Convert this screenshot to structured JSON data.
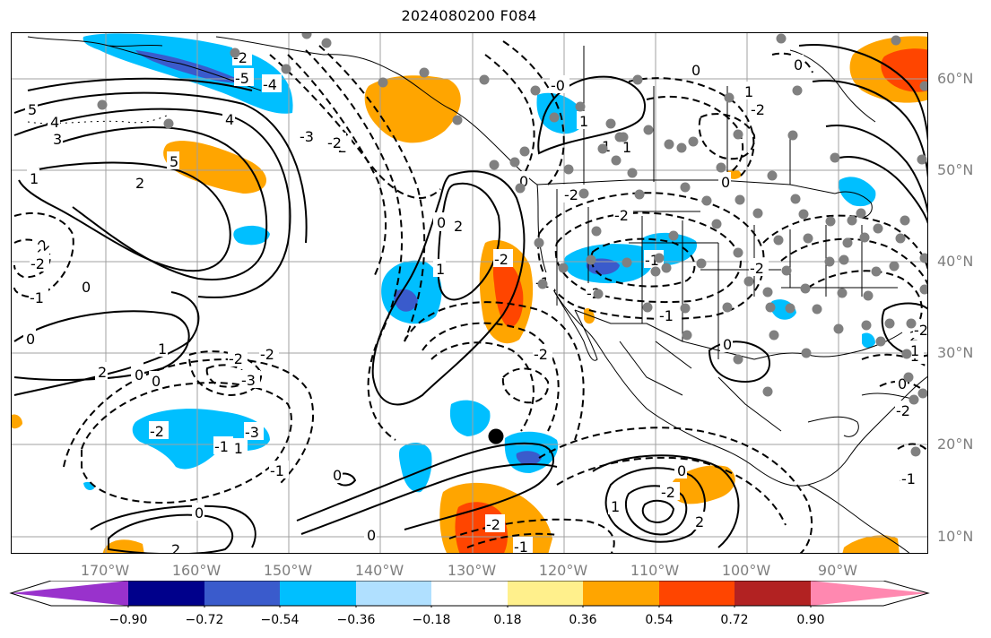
{
  "title": "2024080200 F084",
  "map": {
    "latitude_labels": [
      "60°N",
      "50°N",
      "40°N",
      "30°N",
      "20°N",
      "10°N"
    ],
    "longitude_labels": [
      "170°W",
      "160°W",
      "150°W",
      "140°W",
      "130°W",
      "120°W",
      "110°W",
      "100°W",
      "90°W"
    ],
    "contour_labels": [
      "5",
      "4",
      "3",
      "1",
      "2",
      "5",
      "-2",
      "-1",
      "0",
      "0",
      "2",
      "0",
      "1",
      "-2",
      "-3",
      "-2",
      "-2",
      "0",
      "2",
      "1",
      "-2",
      "-1",
      "0",
      "-2",
      "-2",
      "-1",
      "0",
      "-1",
      "0",
      "2",
      "-1",
      "-2",
      "-3",
      "-1",
      "0",
      "-0",
      "1",
      "-2",
      "-2",
      "-1",
      "-1",
      "-2",
      "0",
      "1",
      "-2",
      "1",
      "0",
      "-2",
      "0",
      "2",
      "-1",
      "0",
      "-1",
      "-2",
      "-2",
      "-2",
      "2",
      "1",
      "0",
      "0",
      "0",
      "0",
      "-1",
      "1",
      "-5",
      "-4",
      "-3",
      "-2",
      "4",
      "0",
      "1",
      "-2",
      "-2"
    ],
    "marker_color": "#000000",
    "station_color": "#808080",
    "line_color": "#000000",
    "grid_color": "#a0a0a0",
    "fill_colors": {
      "light_blue": "#00bfff",
      "blue": "#3a5bcc",
      "orange": "#ffa500",
      "red": "#ff4500"
    }
  },
  "colorbar": {
    "colors": [
      "#9932cc",
      "#00008b",
      "#3a5bcc",
      "#00bfff",
      "#b0e0ff",
      "#ffffff",
      "#fff08c",
      "#ffa500",
      "#ff4500",
      "#b22222",
      "#ff88b0"
    ],
    "tick_labels": [
      "−0.90",
      "−0.72",
      "−0.54",
      "−0.36",
      "−0.18",
      "0.18",
      "0.36",
      "0.54",
      "0.72",
      "0.90"
    ]
  }
}
